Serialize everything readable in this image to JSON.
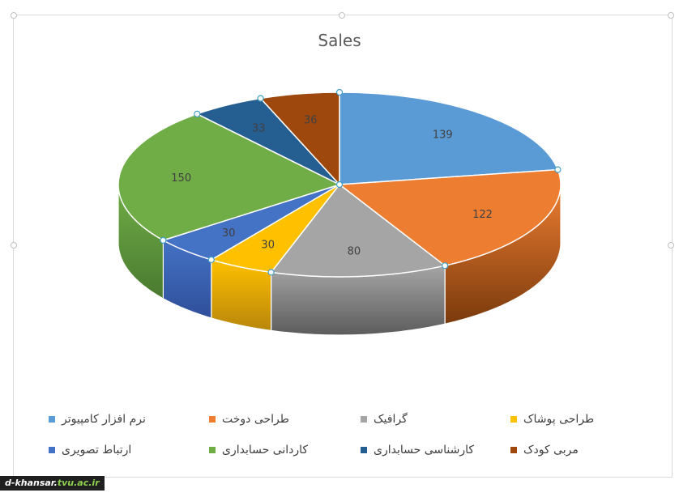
{
  "chart_data": {
    "type": "pie",
    "title": "Sales",
    "categories": [
      "نرم افزار کامپیوتر",
      "طراحی دوخت",
      "گرافیک",
      "طراحی پوشاک",
      "ارتباط تصویری",
      "کاردانی حسابداری",
      "کارشناسی حسابداری",
      "مربی کودک"
    ],
    "values": [
      139,
      122,
      80,
      30,
      30,
      150,
      33,
      36
    ],
    "colors": [
      "#5b9bd5",
      "#ed7d31",
      "#a5a5a5",
      "#ffc000",
      "#4472c4",
      "#70ad47",
      "#255e91",
      "#9e480e"
    ],
    "side_colors": [
      "#3d6e9c",
      "#7a3a0c",
      "#5c5c5c",
      "#b8860b",
      "#2f4f9a",
      "#4a7a30",
      "#1a3f61",
      "#5c2a08"
    ],
    "legend_position": "bottom"
  },
  "watermark": {
    "prefix": "d-khansar.",
    "accent": "tvu.ac.ir"
  }
}
